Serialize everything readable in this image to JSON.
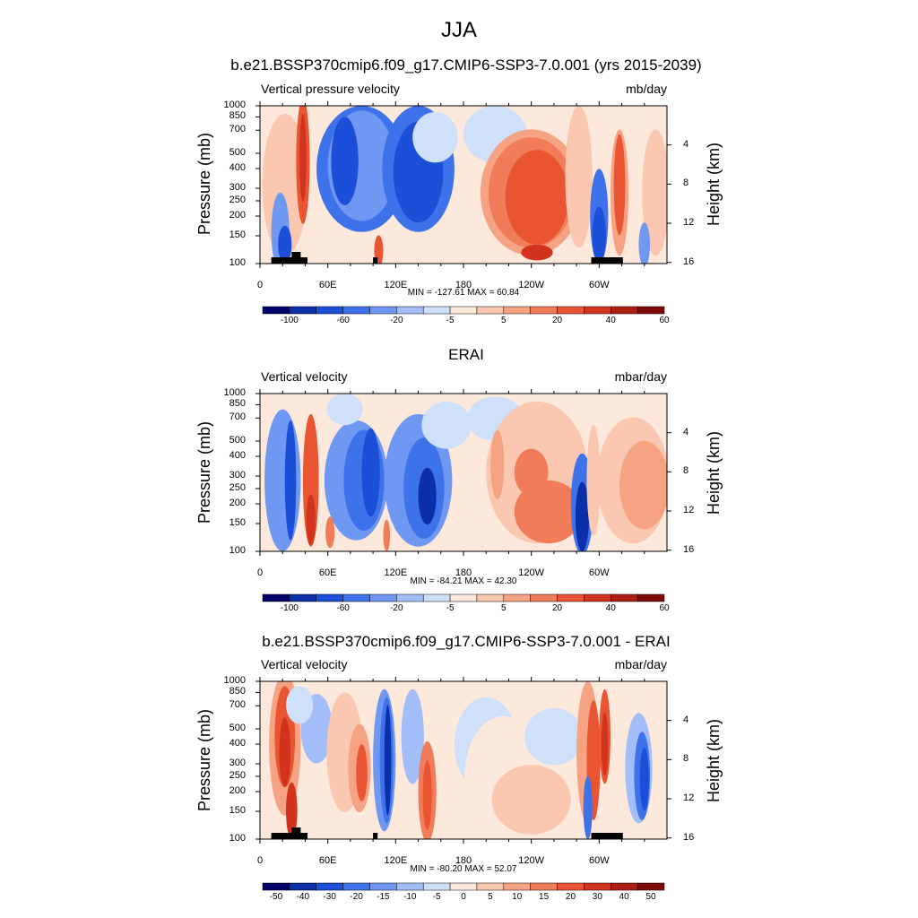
{
  "main_title": "JJA",
  "chart_data": [
    {
      "type": "heatmap",
      "title": "b.e21.BSSP370cmip6.f09_g17.CMIP6-SSP3-7.0.001 (yrs 2015-2039)",
      "left_label": "Vertical pressure velocity",
      "units": "mb/day",
      "ylabel": "Pressure (mb)",
      "ylabel_right": "Height (km)",
      "x_ticks": [
        "0",
        "60E",
        "120E",
        "180",
        "120W",
        "60W"
      ],
      "y_ticks": [
        "100",
        "150",
        "200",
        "250",
        "300",
        "400",
        "500",
        "700",
        "850",
        "1000"
      ],
      "height_ticks": [
        "16",
        "12",
        "8",
        "4"
      ],
      "min_max": "MIN = -127.61  MAX =  60.84",
      "colorbar_labels": [
        "-100",
        "-60",
        "-20",
        "-5",
        "5",
        "20",
        "40",
        "60"
      ],
      "colorbar_colors": [
        "#00006a",
        "#0a2fa8",
        "#1b4fd8",
        "#3e72ea",
        "#6f98f2",
        "#a2bdf7",
        "#cfe0fb",
        "#fde8dc",
        "#fac7b0",
        "#f6a383",
        "#f07c59",
        "#e95432",
        "#d2331d",
        "#ac1e12",
        "#7e0a08"
      ],
      "land_blocks_deg": [
        [
          10,
          34
        ],
        [
          28,
          36
        ],
        [
          34,
          42
        ],
        [
          100,
          104
        ],
        [
          293,
          321
        ]
      ]
    },
    {
      "type": "heatmap",
      "title": "ERAI",
      "left_label": "Vertical velocity",
      "units": "mbar/day",
      "ylabel": "Pressure (mb)",
      "ylabel_right": "Height (km)",
      "x_ticks": [
        "0",
        "60E",
        "120E",
        "180",
        "120W",
        "60W"
      ],
      "y_ticks": [
        "100",
        "150",
        "200",
        "250",
        "300",
        "400",
        "500",
        "700",
        "850",
        "1000"
      ],
      "height_ticks": [
        "16",
        "12",
        "8",
        "4"
      ],
      "min_max": "MIN = -84.21  MAX =  42.30",
      "colorbar_labels": [
        "-100",
        "-60",
        "-20",
        "-5",
        "5",
        "20",
        "40",
        "60"
      ],
      "colorbar_colors": [
        "#00006a",
        "#0a2fa8",
        "#1b4fd8",
        "#3e72ea",
        "#6f98f2",
        "#a2bdf7",
        "#cfe0fb",
        "#fde8dc",
        "#fac7b0",
        "#f6a383",
        "#f07c59",
        "#e95432",
        "#d2331d",
        "#ac1e12",
        "#7e0a08"
      ],
      "land_blocks_deg": []
    },
    {
      "type": "heatmap",
      "title": "b.e21.BSSP370cmip6.f09_g17.CMIP6-SSP3-7.0.001 - ERAI",
      "left_label": "Vertical velocity",
      "units": "mbar/day",
      "ylabel": "Pressure (mb)",
      "ylabel_right": "Height (km)",
      "x_ticks": [
        "0",
        "60E",
        "120E",
        "180",
        "120W",
        "60W"
      ],
      "y_ticks": [
        "100",
        "150",
        "200",
        "250",
        "300",
        "400",
        "500",
        "700",
        "850",
        "1000"
      ],
      "height_ticks": [
        "16",
        "12",
        "8",
        "4"
      ],
      "min_max": "MIN = -80.20  MAX =  52.07",
      "colorbar_labels": [
        "-50",
        "-40",
        "-30",
        "-20",
        "-15",
        "-10",
        "-5",
        "0",
        "5",
        "10",
        "15",
        "20",
        "30",
        "40",
        "50"
      ],
      "colorbar_colors": [
        "#00006a",
        "#0a2fa8",
        "#1b4fd8",
        "#3e72ea",
        "#6f98f2",
        "#a2bdf7",
        "#cfe0fb",
        "#fde8dc",
        "#fac7b0",
        "#f6a383",
        "#f07c59",
        "#e95432",
        "#d2331d",
        "#ac1e12",
        "#7e0a08"
      ],
      "land_blocks_deg": [
        [
          10,
          34
        ],
        [
          28,
          36
        ],
        [
          34,
          42
        ],
        [
          100,
          104
        ],
        [
          293,
          321
        ]
      ]
    }
  ]
}
